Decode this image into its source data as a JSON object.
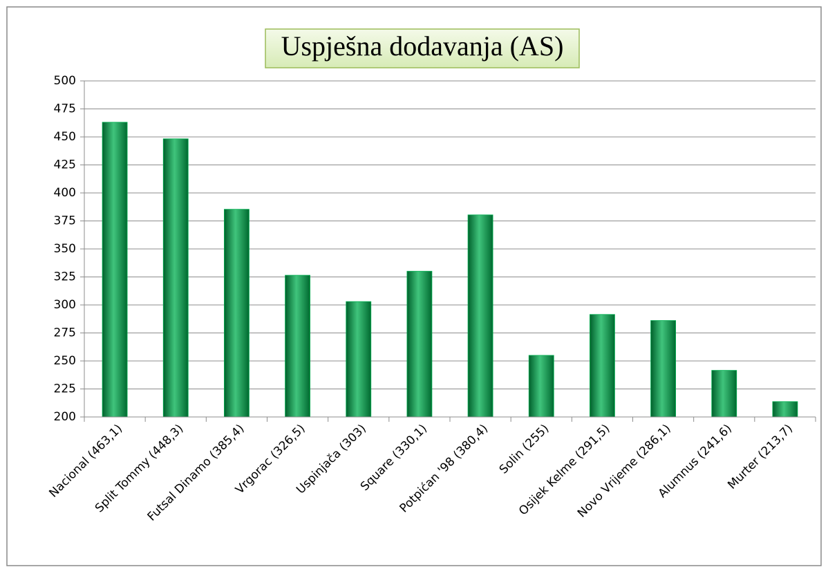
{
  "chart_data": {
    "type": "bar",
    "title": "Uspješna dodavanja (AS)",
    "categories": [
      "Nacional (463,1)",
      "Split Tommy (448,3)",
      "Futsal Dinamo (385,4)",
      "Vrgorac (326,5)",
      "Uspinjača (303)",
      "Square (330,1)",
      "Potpićan '98 (380,4)",
      "Solin (255)",
      "Osijek Kelme (291,5)",
      "Novo Vrijeme (286,1)",
      "Alumnus (241,6)",
      "Murter (213,7)"
    ],
    "values": [
      463.1,
      448.3,
      385.4,
      326.5,
      303,
      330.1,
      380.4,
      255,
      291.5,
      286.1,
      241.6,
      213.7
    ],
    "color": "#00b050",
    "ylim": [
      200,
      500
    ],
    "yticks": [
      200,
      225,
      250,
      275,
      300,
      325,
      350,
      375,
      400,
      425,
      450,
      475,
      500
    ],
    "grid": true
  }
}
